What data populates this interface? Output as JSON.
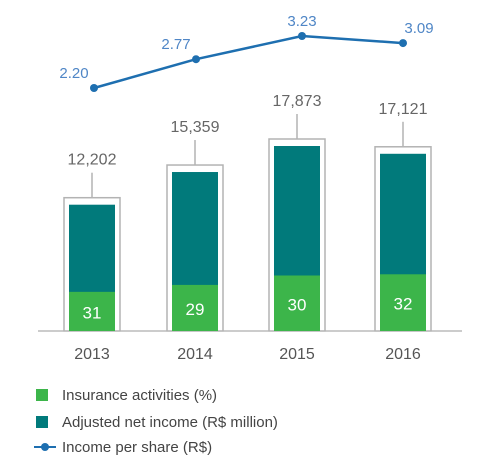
{
  "colors": {
    "insurance": "#3cb54a",
    "adjusted": "#017a7b",
    "income_line": "#1e6fb0",
    "income_label": "#4f86c6",
    "outline": "#b3b3b3",
    "text": "#666666",
    "axis": "#999999"
  },
  "chart_data": {
    "type": "bar",
    "categories": [
      "2013",
      "2014",
      "2015",
      "2016"
    ],
    "series": [
      {
        "name": "Adjusted net income (R$ million)",
        "values": [
          12202,
          15359,
          17873,
          17121
        ],
        "labels": [
          "12,202",
          "15,359",
          "17,873",
          "17,121"
        ]
      },
      {
        "name": "Insurance activities (%)",
        "values": [
          31,
          29,
          30,
          32
        ],
        "labels": [
          "31",
          "29",
          "30",
          "32"
        ]
      },
      {
        "name": "Income per share (R$)",
        "type": "line",
        "values": [
          2.2,
          2.77,
          3.23,
          3.09
        ],
        "labels": [
          "2.20",
          "2.77",
          "3.23",
          "3.09"
        ]
      }
    ],
    "legend_position": "bottom-left",
    "grid": false
  },
  "legend": [
    {
      "label": "Insurance activities (%)",
      "icon": "square-swatch"
    },
    {
      "label": "Adjusted net income (R$ million)",
      "icon": "square-swatch"
    },
    {
      "label": "Income per share (R$)",
      "icon": "line-dot-swatch"
    }
  ]
}
